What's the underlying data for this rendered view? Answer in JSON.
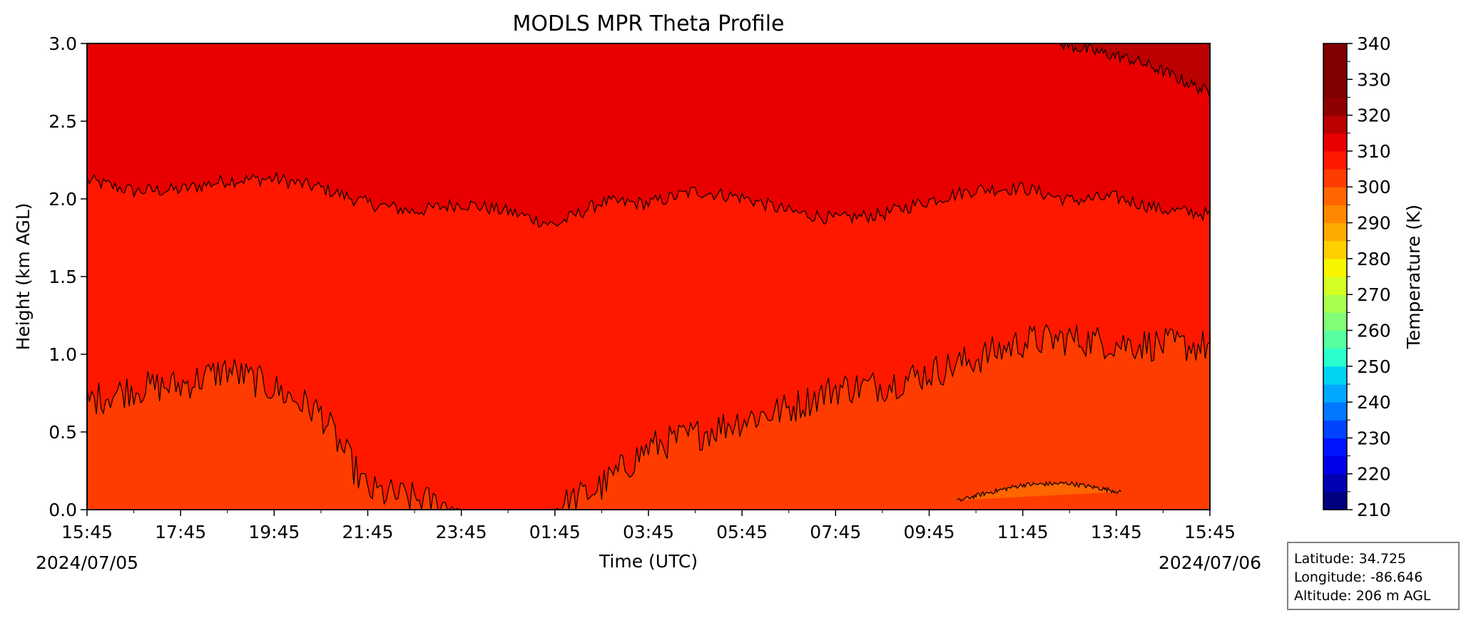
{
  "chart_data": {
    "type": "heatmap",
    "title": "MODLS MPR Theta Profile",
    "xlabel": "Time (UTC)",
    "ylabel": "Height (km AGL)",
    "ylim": [
      0.0,
      3.0
    ],
    "x_tick_labels": [
      "15:45",
      "17:45",
      "19:45",
      "21:45",
      "23:45",
      "01:45",
      "03:45",
      "05:45",
      "07:45",
      "09:45",
      "11:45",
      "13:45",
      "15:45"
    ],
    "y_tick_labels": [
      "0.0",
      "0.5",
      "1.0",
      "1.5",
      "2.0",
      "2.5",
      "3.0"
    ],
    "date_start": "2024/07/05",
    "date_end": "2024/07/06",
    "colorbar": {
      "label": "Temperature (K)",
      "min": 210,
      "max": 340,
      "step": 5,
      "tick_labels": [
        "210",
        "220",
        "230",
        "240",
        "250",
        "260",
        "270",
        "280",
        "290",
        "300",
        "310",
        "320",
        "330",
        "340"
      ],
      "colors": [
        "#00007f",
        "#0000b2",
        "#0000e8",
        "#0014ff",
        "#0044ff",
        "#0078ff",
        "#00a8ff",
        "#00d4f4",
        "#2affcd",
        "#56ffa0",
        "#80ff77",
        "#a8ff4e",
        "#d4ff23",
        "#f8f500",
        "#ffd000",
        "#ffaa00",
        "#ff8800",
        "#ff6600",
        "#ff3c00",
        "#ff1800",
        "#e80000",
        "#ba0000",
        "#8f0000",
        "#7f0000",
        "#7f0000",
        "#7f0000"
      ]
    },
    "contour_levels_K": [
      300,
      305,
      310,
      315,
      320
    ],
    "boundaries_km": {
      "b310_315": {
        "x_hours": [
          0,
          1,
          2,
          3,
          4,
          5,
          6,
          7,
          8,
          9,
          10,
          11,
          12,
          13,
          14,
          15,
          16,
          17,
          18,
          19,
          20,
          21,
          22,
          23,
          24
        ],
        "height": [
          2.12,
          2.05,
          2.06,
          2.12,
          2.13,
          2.07,
          1.97,
          1.92,
          1.97,
          1.92,
          1.83,
          1.98,
          1.97,
          2.05,
          2.01,
          1.92,
          1.87,
          1.9,
          1.99,
          2.06,
          2.07,
          1.99,
          2.01,
          1.93,
          1.9
        ]
      },
      "b305_310": {
        "x_hours": [
          0,
          1,
          2,
          3,
          4,
          5,
          6,
          7,
          8,
          9,
          10,
          11,
          12,
          13,
          14,
          15,
          16,
          17,
          18,
          19,
          20,
          21,
          22,
          23,
          24
        ],
        "height": [
          0.7,
          0.78,
          0.8,
          0.9,
          0.78,
          0.62,
          0.12,
          0.07,
          0.0,
          0.0,
          0.0,
          0.15,
          0.4,
          0.48,
          0.58,
          0.65,
          0.78,
          0.8,
          0.88,
          0.97,
          1.08,
          1.1,
          1.07,
          1.06,
          1.05
        ]
      },
      "b300_305": {
        "x_hours": [
          0,
          1,
          2,
          3,
          4,
          5,
          6,
          7,
          8,
          9,
          10,
          11,
          12,
          13,
          14,
          15,
          16,
          17,
          18,
          19,
          20,
          21,
          22,
          23,
          24
        ],
        "height": [
          0,
          0,
          0,
          0,
          0,
          0,
          0,
          0,
          0,
          0,
          0,
          0,
          0,
          0,
          0,
          0,
          0,
          0,
          0,
          0.09,
          0.16,
          0.17,
          0.12,
          0,
          0
        ]
      },
      "b315_320": {
        "x_hours": [
          20.8,
          21.5,
          22.0,
          22.5,
          23.0,
          23.5,
          24.0
        ],
        "height": [
          3.0,
          2.95,
          2.92,
          2.88,
          2.82,
          2.75,
          2.68
        ]
      }
    },
    "grid": false,
    "legend": "none",
    "info_box": {
      "latitude": "Latitude: 34.725",
      "longitude": "Longitude: -86.646",
      "altitude": "Altitude: 206 m AGL"
    }
  }
}
